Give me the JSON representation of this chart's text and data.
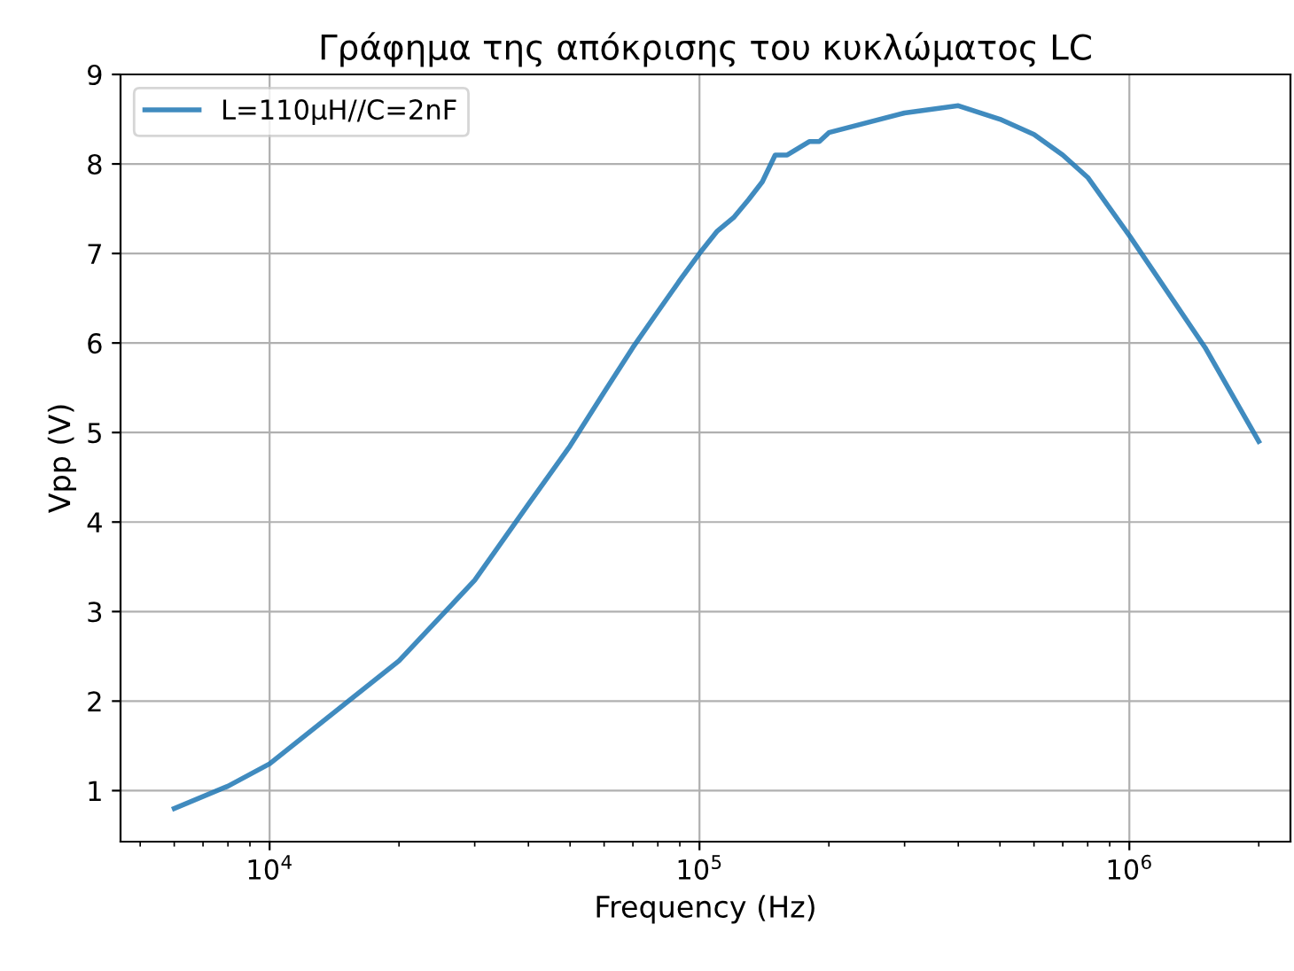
{
  "chart_data": {
    "type": "line",
    "title": "Γράφημα της απόκρισης του κυκλώματος LC",
    "xlabel": "Frequency (Hz)",
    "ylabel": "Vpp (V)",
    "x": [
      6000,
      8000,
      10000,
      20000,
      30000,
      40000,
      50000,
      60000,
      70000,
      80000,
      90000,
      100000,
      110000,
      120000,
      130000,
      140000,
      150000,
      160000,
      180000,
      190000,
      200000,
      300000,
      400000,
      500000,
      600000,
      700000,
      800000,
      1000000,
      1500000,
      2000000
    ],
    "series": [
      {
        "name": "L=110μH//C=2nF",
        "color": "#1f77b4",
        "values": [
          0.8,
          1.05,
          1.3,
          2.45,
          3.35,
          4.2,
          4.85,
          5.45,
          5.95,
          6.35,
          6.7,
          7.0,
          7.25,
          7.4,
          7.6,
          7.8,
          8.1,
          8.1,
          8.25,
          8.25,
          8.35,
          8.57,
          8.65,
          8.5,
          8.33,
          8.1,
          7.85,
          7.2,
          5.95,
          4.9
        ]
      }
    ],
    "log": "x",
    "xlim": [
      4500,
      2370000
    ],
    "ylim": [
      0.43,
      9
    ],
    "xticks": [
      {
        "value": 10000,
        "label": "10$^{4}$"
      },
      {
        "value": 100000,
        "label": "10$^{5}$"
      },
      {
        "value": 1000000,
        "label": "10$^{6}$"
      }
    ],
    "yticks": [
      1,
      2,
      3,
      4,
      5,
      6,
      7,
      8,
      9
    ],
    "grid": true,
    "legend": "top left",
    "line_style": "solid",
    "marker": "none"
  }
}
